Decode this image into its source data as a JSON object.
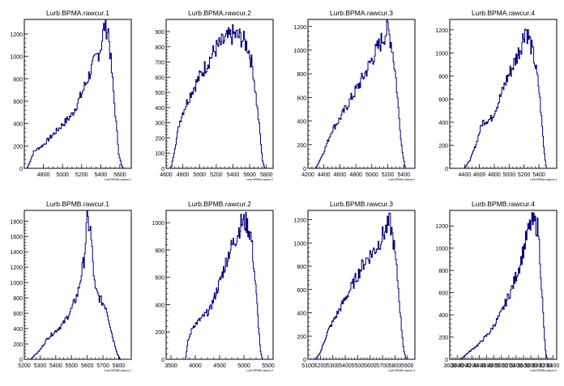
{
  "chart_data": [
    {
      "type": "histogram",
      "title": "Lurb.BPMA.rawcur.1",
      "xlabel": "Lurb.BPMA.rawcur.1",
      "xlim": [
        4600,
        5720
      ],
      "ylim": [
        0,
        1330
      ],
      "xticks": [
        4800,
        5000,
        5200,
        5400,
        5600
      ],
      "yticks": [
        0,
        200,
        400,
        600,
        800,
        1000,
        1200
      ],
      "curve": [
        [
          4630,
          0
        ],
        [
          4660,
          60
        ],
        [
          4700,
          150
        ],
        [
          4800,
          210
        ],
        [
          4900,
          300
        ],
        [
          5000,
          390
        ],
        [
          5100,
          480
        ],
        [
          5200,
          660
        ],
        [
          5300,
          880
        ],
        [
          5400,
          1080
        ],
        [
          5440,
          1280
        ],
        [
          5480,
          1230
        ],
        [
          5510,
          920
        ],
        [
          5560,
          420
        ],
        [
          5590,
          130
        ],
        [
          5620,
          20
        ],
        [
          5640,
          0
        ]
      ]
    },
    {
      "type": "histogram",
      "title": "Lurb.BPMA.rawcur.2",
      "xlabel": "Lurb.BPMA.rawcur.2",
      "xlim": [
        4600,
        5880
      ],
      "ylim": [
        0,
        980
      ],
      "xticks": [
        4600,
        4800,
        5000,
        5200,
        5400,
        5600,
        5800
      ],
      "yticks": [
        0,
        100,
        200,
        300,
        400,
        500,
        600,
        700,
        800,
        900
      ],
      "curve": [
        [
          4660,
          0
        ],
        [
          4700,
          120
        ],
        [
          4760,
          300
        ],
        [
          4800,
          370
        ],
        [
          4900,
          500
        ],
        [
          5000,
          600
        ],
        [
          5100,
          700
        ],
        [
          5200,
          790
        ],
        [
          5300,
          840
        ],
        [
          5400,
          880
        ],
        [
          5500,
          860
        ],
        [
          5580,
          800
        ],
        [
          5640,
          650
        ],
        [
          5680,
          450
        ],
        [
          5720,
          250
        ],
        [
          5750,
          60
        ],
        [
          5780,
          0
        ]
      ]
    },
    {
      "type": "histogram",
      "title": "Lurb.BPMA.rawcur.3",
      "xlabel": "Lurb.BPMA.rawcur.3",
      "xlim": [
        4200,
        5540
      ],
      "ylim": [
        0,
        1260
      ],
      "xticks": [
        4200,
        4400,
        4600,
        4800,
        5000,
        5200,
        5400
      ],
      "yticks": [
        0,
        200,
        400,
        600,
        800,
        1000,
        1200
      ],
      "curve": [
        [
          4300,
          0
        ],
        [
          4400,
          140
        ],
        [
          4500,
          320
        ],
        [
          4600,
          420
        ],
        [
          4700,
          540
        ],
        [
          4800,
          660
        ],
        [
          4900,
          780
        ],
        [
          5000,
          920
        ],
        [
          5100,
          1050
        ],
        [
          5200,
          1180
        ],
        [
          5250,
          1050
        ],
        [
          5300,
          780
        ],
        [
          5340,
          450
        ],
        [
          5380,
          150
        ],
        [
          5420,
          0
        ]
      ]
    },
    {
      "type": "histogram",
      "title": "Lurb.BPMA.rawcur.4",
      "xlabel": "Lurb.BPMA.rawcur.4",
      "xlim": [
        4200,
        5640
      ],
      "ylim": [
        0,
        1290
      ],
      "xticks": [
        4400,
        4600,
        4800,
        5000,
        5200,
        5400
      ],
      "yticks": [
        0,
        200,
        400,
        600,
        800,
        1000,
        1200
      ],
      "curve": [
        [
          4400,
          0
        ],
        [
          4480,
          80
        ],
        [
          4560,
          220
        ],
        [
          4640,
          400
        ],
        [
          4760,
          430
        ],
        [
          4860,
          580
        ],
        [
          4960,
          760
        ],
        [
          5060,
          900
        ],
        [
          5160,
          1060
        ],
        [
          5220,
          1220
        ],
        [
          5280,
          1100
        ],
        [
          5340,
          940
        ],
        [
          5400,
          700
        ],
        [
          5440,
          400
        ],
        [
          5470,
          150
        ],
        [
          5500,
          0
        ]
      ]
    },
    {
      "type": "histogram",
      "title": "Lurb.BPMB.rawcur.1",
      "xlabel": "Lurb.BPMB.rawcur.1",
      "xlim": [
        5200,
        5880
      ],
      "ylim": [
        0,
        1940
      ],
      "xticks": [
        5200,
        5300,
        5400,
        5500,
        5600,
        5700,
        5800
      ],
      "yticks": [
        0,
        200,
        400,
        600,
        800,
        1000,
        1200,
        1400,
        1600,
        1800
      ],
      "curve": [
        [
          5240,
          0
        ],
        [
          5300,
          120
        ],
        [
          5350,
          280
        ],
        [
          5400,
          370
        ],
        [
          5450,
          470
        ],
        [
          5500,
          650
        ],
        [
          5540,
          860
        ],
        [
          5580,
          1300
        ],
        [
          5600,
          1820
        ],
        [
          5620,
          1700
        ],
        [
          5650,
          900
        ],
        [
          5690,
          760
        ],
        [
          5720,
          680
        ],
        [
          5760,
          300
        ],
        [
          5790,
          80
        ],
        [
          5810,
          0
        ]
      ]
    },
    {
      "type": "histogram",
      "title": "Lurb.BPMB.rawcur.2",
      "xlabel": "Lurb.BPMB.rawcur.2",
      "xlim": [
        3400,
        5600
      ],
      "ylim": [
        0,
        1090
      ],
      "xticks": [
        3500,
        4000,
        4500,
        5000,
        5500
      ],
      "yticks": [
        0,
        200,
        400,
        600,
        800,
        1000
      ],
      "curve": [
        [
          3800,
          0
        ],
        [
          3850,
          130
        ],
        [
          3950,
          240
        ],
        [
          4100,
          290
        ],
        [
          4300,
          360
        ],
        [
          4500,
          560
        ],
        [
          4700,
          790
        ],
        [
          4850,
          900
        ],
        [
          4950,
          1000
        ],
        [
          5050,
          1000
        ],
        [
          5150,
          900
        ],
        [
          5250,
          500
        ],
        [
          5300,
          250
        ],
        [
          5340,
          60
        ],
        [
          5380,
          0
        ]
      ]
    },
    {
      "type": "histogram",
      "title": "Lurb.BPMB.rawcur.3",
      "xlabel": "Lurb.BPMB.rawcur.3",
      "xlim": [
        5100,
        5960
      ],
      "ylim": [
        0,
        1280
      ],
      "xticks": [
        5100,
        5200,
        5300,
        5400,
        5500,
        5600,
        5700,
        5800,
        5900
      ],
      "yticks": [
        0,
        200,
        400,
        600,
        800,
        1000,
        1200
      ],
      "curve": [
        [
          5160,
          0
        ],
        [
          5200,
          60
        ],
        [
          5260,
          240
        ],
        [
          5350,
          420
        ],
        [
          5450,
          620
        ],
        [
          5550,
          830
        ],
        [
          5650,
          960
        ],
        [
          5720,
          1100
        ],
        [
          5760,
          1180
        ],
        [
          5790,
          1000
        ],
        [
          5820,
          700
        ],
        [
          5850,
          300
        ],
        [
          5870,
          80
        ],
        [
          5890,
          0
        ]
      ]
    },
    {
      "type": "histogram",
      "title": "Lurb.BPMB.rawcur.4",
      "xlabel": "Lurb.BPMB.rawcur.4",
      "xlim": [
        3600,
        6500
      ],
      "ylim": [
        0,
        1340
      ],
      "xticks": [
        3600,
        3800,
        4000,
        4200,
        4400,
        4600,
        4800,
        5000,
        5200,
        5400,
        5600,
        5800,
        6000,
        6200,
        6400
      ],
      "yticks": [
        0,
        200,
        400,
        600,
        800,
        1000,
        1200
      ],
      "curve": [
        [
          3900,
          0
        ],
        [
          4100,
          60
        ],
        [
          4400,
          140
        ],
        [
          4700,
          250
        ],
        [
          5000,
          420
        ],
        [
          5300,
          650
        ],
        [
          5500,
          850
        ],
        [
          5700,
          1120
        ],
        [
          5800,
          1220
        ],
        [
          5900,
          1230
        ],
        [
          6000,
          1180
        ],
        [
          6050,
          900
        ],
        [
          6100,
          600
        ],
        [
          6150,
          300
        ],
        [
          6200,
          60
        ],
        [
          6250,
          0
        ]
      ]
    }
  ]
}
